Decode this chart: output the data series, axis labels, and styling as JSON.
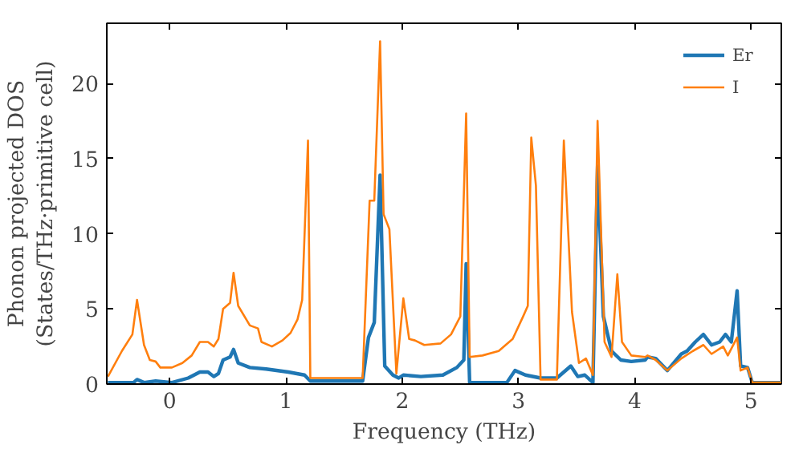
{
  "chart_data": {
    "type": "line",
    "xlabel": "Frequency (THz)",
    "ylabel": "Phonon projected DOS\n(States/THz·primitive cell)",
    "xlim": [
      -0.54,
      5.26
    ],
    "ylim": [
      0,
      24
    ],
    "xticks": [
      0,
      1,
      2,
      3,
      4,
      5
    ],
    "yticks": [
      0,
      5,
      10,
      15,
      20
    ],
    "grid": false,
    "legend": "top right",
    "series": [
      {
        "name": "Er",
        "color": "#1f77b4",
        "x": [
          -0.53,
          -0.31,
          -0.28,
          -0.22,
          -0.12,
          0.02,
          0.16,
          0.26,
          0.33,
          0.38,
          0.42,
          0.46,
          0.52,
          0.55,
          0.59,
          0.69,
          0.83,
          1.02,
          1.16,
          1.21,
          1.66,
          1.71,
          1.76,
          1.81,
          1.85,
          1.92,
          1.97,
          2.01,
          2.16,
          2.35,
          2.47,
          2.53,
          2.55,
          2.58,
          2.9,
          2.97,
          3.06,
          3.19,
          3.33,
          3.39,
          3.45,
          3.51,
          3.57,
          3.64,
          3.68,
          3.73,
          3.8,
          3.88,
          3.97,
          4.09,
          4.11,
          4.18,
          4.28,
          4.4,
          4.45,
          4.52,
          4.59,
          4.66,
          4.73,
          4.78,
          4.83,
          4.88,
          4.91,
          4.97,
          5.01,
          5.26
        ],
        "values": [
          0.1,
          0.1,
          0.3,
          0.1,
          0.2,
          0.1,
          0.4,
          0.8,
          0.8,
          0.5,
          0.7,
          1.6,
          1.8,
          2.3,
          1.4,
          1.1,
          1.0,
          0.8,
          0.6,
          0.2,
          0.2,
          3.1,
          4.1,
          13.9,
          1.2,
          0.6,
          0.4,
          0.6,
          0.5,
          0.6,
          1.1,
          1.6,
          8.0,
          0.1,
          0.1,
          0.9,
          0.6,
          0.4,
          0.4,
          0.8,
          1.2,
          0.5,
          0.6,
          0.1,
          14.5,
          4.5,
          2.2,
          1.6,
          1.5,
          1.6,
          1.8,
          1.7,
          0.9,
          2.0,
          2.2,
          2.8,
          3.3,
          2.6,
          2.8,
          3.3,
          2.8,
          6.2,
          1.2,
          1.1,
          0.1,
          0.1
        ]
      },
      {
        "name": "I",
        "color": "#ff7f0e",
        "x": [
          -0.53,
          -0.41,
          -0.32,
          -0.28,
          -0.22,
          -0.17,
          -0.12,
          -0.08,
          0.02,
          0.11,
          0.19,
          0.26,
          0.33,
          0.38,
          0.42,
          0.46,
          0.52,
          0.55,
          0.59,
          0.69,
          0.76,
          0.79,
          0.88,
          0.97,
          1.04,
          1.1,
          1.14,
          1.19,
          1.21,
          1.66,
          1.72,
          1.76,
          1.81,
          1.84,
          1.89,
          1.95,
          2.01,
          2.06,
          2.11,
          2.19,
          2.33,
          2.42,
          2.5,
          2.55,
          2.58,
          2.69,
          2.83,
          2.95,
          3.04,
          3.08,
          3.11,
          3.15,
          3.19,
          3.33,
          3.39,
          3.46,
          3.52,
          3.58,
          3.64,
          3.68,
          3.74,
          3.8,
          3.85,
          3.89,
          3.97,
          4.09,
          4.11,
          4.18,
          4.28,
          4.4,
          4.5,
          4.59,
          4.66,
          4.76,
          4.8,
          4.88,
          4.91,
          4.97,
          5.01,
          5.26
        ],
        "values": [
          0.5,
          2.2,
          3.3,
          5.6,
          2.6,
          1.6,
          1.5,
          1.1,
          1.1,
          1.4,
          1.9,
          2.8,
          2.8,
          2.5,
          3.0,
          5.0,
          5.4,
          7.4,
          5.2,
          3.9,
          3.7,
          2.8,
          2.5,
          2.9,
          3.4,
          4.3,
          5.6,
          16.2,
          0.4,
          0.4,
          12.2,
          12.2,
          22.8,
          11.3,
          10.3,
          0.7,
          5.7,
          3.0,
          2.9,
          2.6,
          2.7,
          3.3,
          4.5,
          18.0,
          1.8,
          1.9,
          2.2,
          3.0,
          4.5,
          5.2,
          16.4,
          13.2,
          0.3,
          0.3,
          16.2,
          4.8,
          1.4,
          1.7,
          0.6,
          17.5,
          2.8,
          1.8,
          7.3,
          2.8,
          1.9,
          1.8,
          1.9,
          1.6,
          0.9,
          1.7,
          2.2,
          2.6,
          2.0,
          2.5,
          1.9,
          3.1,
          0.9,
          1.1,
          0.1,
          0.1
        ]
      }
    ]
  }
}
